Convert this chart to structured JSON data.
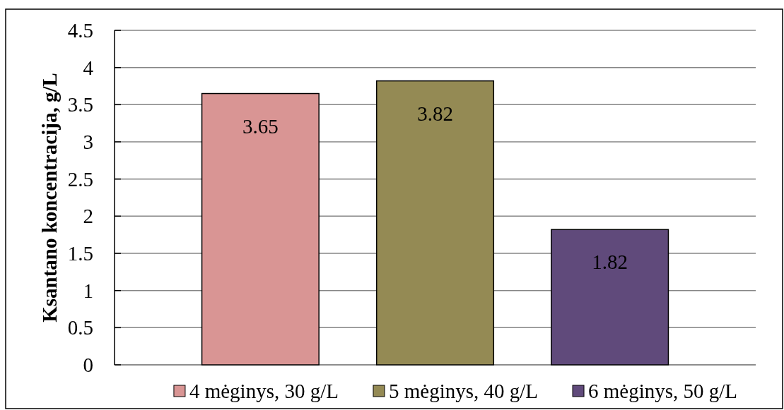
{
  "chart_data": {
    "type": "bar",
    "ylabel": "Ksantano koncentracija, g/L",
    "categories": [
      null
    ],
    "series": [
      {
        "name": "4 mėginys, 30 g/L",
        "color": "#d99594",
        "values": [
          3.65
        ]
      },
      {
        "name": "5 mėginys, 40 g/L",
        "color": "#948a54",
        "values": [
          3.82
        ]
      },
      {
        "name": "6 mėginys, 50 g/L",
        "color": "#604a7b",
        "values": [
          1.82
        ]
      }
    ],
    "ylim": [
      0,
      4.5
    ],
    "yticks": [
      0,
      0.5,
      1,
      1.5,
      2,
      2.5,
      3,
      3.5,
      4,
      4.5
    ],
    "grid": "y",
    "legend": "bottom",
    "data_labels": true
  }
}
